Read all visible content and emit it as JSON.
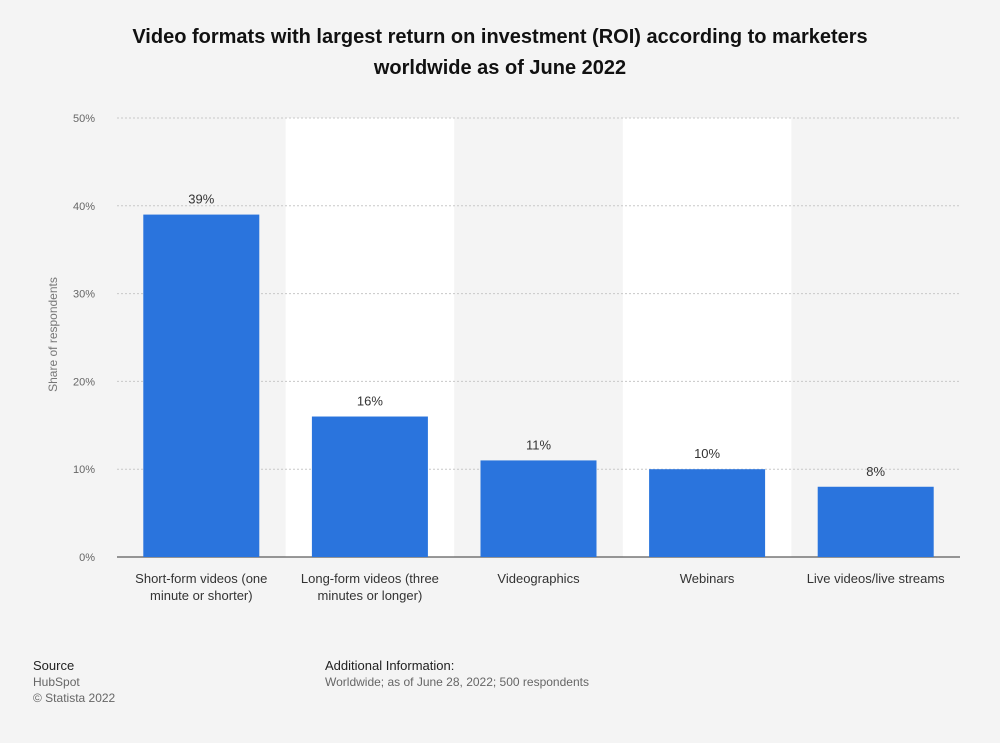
{
  "title_line1": "Video formats with largest return on investment (ROI) according to marketers",
  "title_line2": "worldwide as of June 2022",
  "chart_data": {
    "type": "bar",
    "title": "Video formats with largest return on investment (ROI) according to marketers worldwide as of June 2022",
    "categories": [
      [
        "Short-form videos (one",
        "minute or shorter)"
      ],
      [
        "Long-form videos (three",
        "minutes or longer)"
      ],
      [
        "Videographics"
      ],
      [
        "Webinars"
      ],
      [
        "Live videos/live streams"
      ]
    ],
    "values": [
      39,
      16,
      11,
      10,
      8
    ],
    "value_labels": [
      "39%",
      "16%",
      "11%",
      "10%",
      "8%"
    ],
    "ylabel": "Share of respondents",
    "ylim": [
      0,
      50
    ],
    "yticks": [
      "0%",
      "10%",
      "20%",
      "30%",
      "40%",
      "50%"
    ],
    "grid": true,
    "bar_color": "#2a74dd",
    "band_color": "#ffffff"
  },
  "footer": {
    "source_label": "Source",
    "source_value": "HubSpot",
    "copyright": "© Statista 2022",
    "info_label": "Additional Information:",
    "info_value": "Worldwide; as of June 28, 2022; 500 respondents"
  }
}
